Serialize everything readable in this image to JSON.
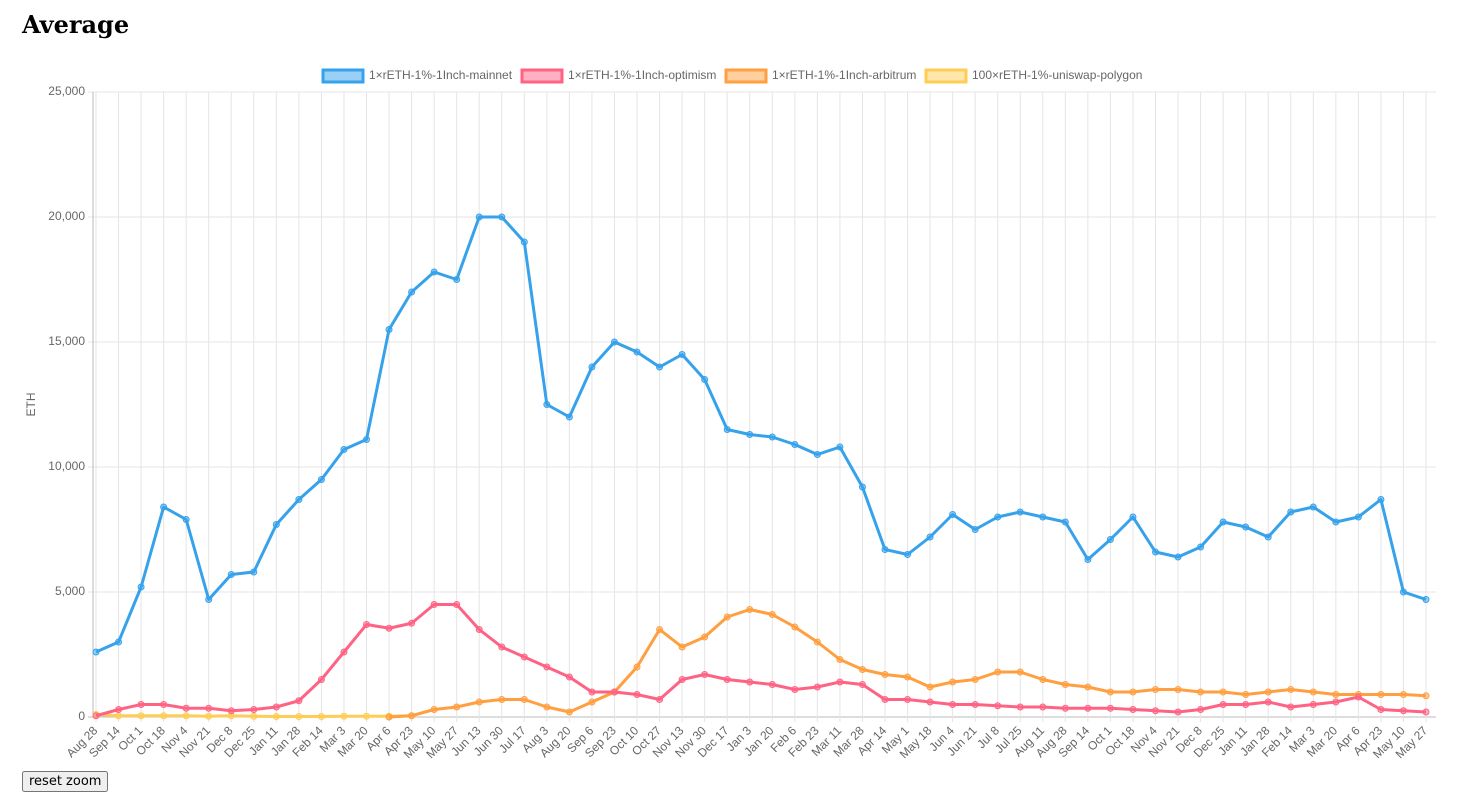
{
  "title": "Average",
  "button": "reset zoom",
  "chart_data": {
    "type": "line",
    "ylabel": "ETH",
    "categories": [
      "Aug 28",
      "Sep 14",
      "Oct 1",
      "Oct 18",
      "Nov 4",
      "Nov 21",
      "Dec 8",
      "Dec 25",
      "Jan 11",
      "Jan 28",
      "Feb 14",
      "Mar 3",
      "Mar 20",
      "Apr 6",
      "Apr 23",
      "May 10",
      "May 27",
      "Jun 13",
      "Jun 30",
      "Jul 17",
      "Aug 3",
      "Aug 20",
      "Sep 6",
      "Sep 23",
      "Oct 10",
      "Oct 27",
      "Nov 13",
      "Nov 30",
      "Dec 17",
      "Jan 3",
      "Jan 20",
      "Feb 6",
      "Feb 23",
      "Mar 11",
      "Mar 28",
      "Apr 14",
      "May 1",
      "May 18",
      "Jun 4",
      "Jun 21",
      "Jul 8",
      "Jul 25",
      "Aug 11",
      "Aug 28",
      "Sep 14",
      "Oct 1",
      "Oct 18",
      "Nov 4",
      "Nov 21",
      "Dec 8",
      "Dec 25",
      "Jan 11",
      "Jan 28",
      "Feb 14",
      "Mar 3",
      "Mar 20",
      "Apr 6",
      "Apr 23",
      "May 10",
      "May 27"
    ],
    "series": [
      {
        "name": "1×rETH-1%-1Inch-mainnet",
        "color": "#36a2eb",
        "values": [
          2600,
          3000,
          5200,
          8400,
          7900,
          4700,
          5700,
          5800,
          7700,
          8700,
          9500,
          10700,
          11100,
          15500,
          17000,
          17800,
          17500,
          20000,
          20000,
          19000,
          12500,
          12000,
          14000,
          15000,
          14600,
          14000,
          14500,
          13500,
          11500,
          11300,
          11200,
          10900,
          10500,
          10800,
          9200,
          6700,
          6500,
          7200,
          8100,
          7500,
          8000,
          8200,
          8000,
          7800,
          6300,
          7100,
          8000,
          6600,
          6400,
          6800,
          7800,
          7600,
          7200,
          8200,
          8400,
          7800,
          8000,
          8700,
          5000,
          4700
        ]
      },
      {
        "name": "1×rETH-1%-1Inch-optimism",
        "color": "#ff6384",
        "values": [
          50,
          300,
          500,
          500,
          350,
          350,
          250,
          300,
          400,
          650,
          1500,
          2600,
          3700,
          3550,
          3750,
          4500,
          4500,
          3500,
          2800,
          2400,
          2000,
          1600,
          1000,
          1000,
          900,
          700,
          1500,
          1700,
          1500,
          1400,
          1300,
          1100,
          1200,
          1400,
          1300,
          700,
          700,
          600,
          500,
          500,
          450,
          400,
          400,
          350,
          350,
          350,
          300,
          250,
          200,
          300,
          500,
          500,
          600,
          400,
          500,
          600,
          800,
          300,
          250,
          200
        ]
      },
      {
        "name": "1×rETH-1%-1Inch-arbitrum",
        "color": "#ff9f40",
        "values": [
          null,
          null,
          null,
          null,
          null,
          null,
          null,
          null,
          null,
          null,
          null,
          null,
          null,
          0,
          50,
          300,
          400,
          600,
          700,
          700,
          400,
          200,
          600,
          1000,
          2000,
          3500,
          2800,
          3200,
          4000,
          4300,
          4100,
          3600,
          3000,
          2300,
          1900,
          1700,
          1600,
          1200,
          1400,
          1500,
          1800,
          1800,
          1500,
          1300,
          1200,
          1000,
          1000,
          1100,
          1100,
          1000,
          1000,
          900,
          1000,
          1100,
          1000,
          900,
          900,
          900,
          900,
          850
        ]
      },
      {
        "name": "100×rETH-1%-uniswap-polygon",
        "color": "#ffcd56",
        "values": [
          100,
          50,
          50,
          50,
          50,
          30,
          50,
          30,
          20,
          20,
          20,
          30,
          30,
          30,
          50,
          null,
          null,
          null,
          null,
          null,
          null,
          null,
          null,
          null,
          null,
          null,
          null,
          null,
          null,
          null,
          null,
          null,
          null,
          null,
          null,
          null,
          null,
          null,
          null,
          null,
          null,
          null,
          null,
          null,
          null,
          null,
          null,
          null,
          null,
          null,
          null,
          null,
          null,
          null,
          null,
          null,
          null,
          null,
          null,
          null
        ]
      }
    ],
    "ylim": [
      0,
      25000
    ],
    "yticks": [
      0,
      {
        "value": 5000,
        "label": "5,000"
      },
      {
        "value": 10000,
        "label": "10,000"
      },
      {
        "value": 15000,
        "label": "15,000"
      },
      {
        "value": 20000,
        "label": "20,000"
      },
      {
        "value": 25000,
        "label": "25,000"
      }
    ],
    "grid": true,
    "legend": "top"
  }
}
